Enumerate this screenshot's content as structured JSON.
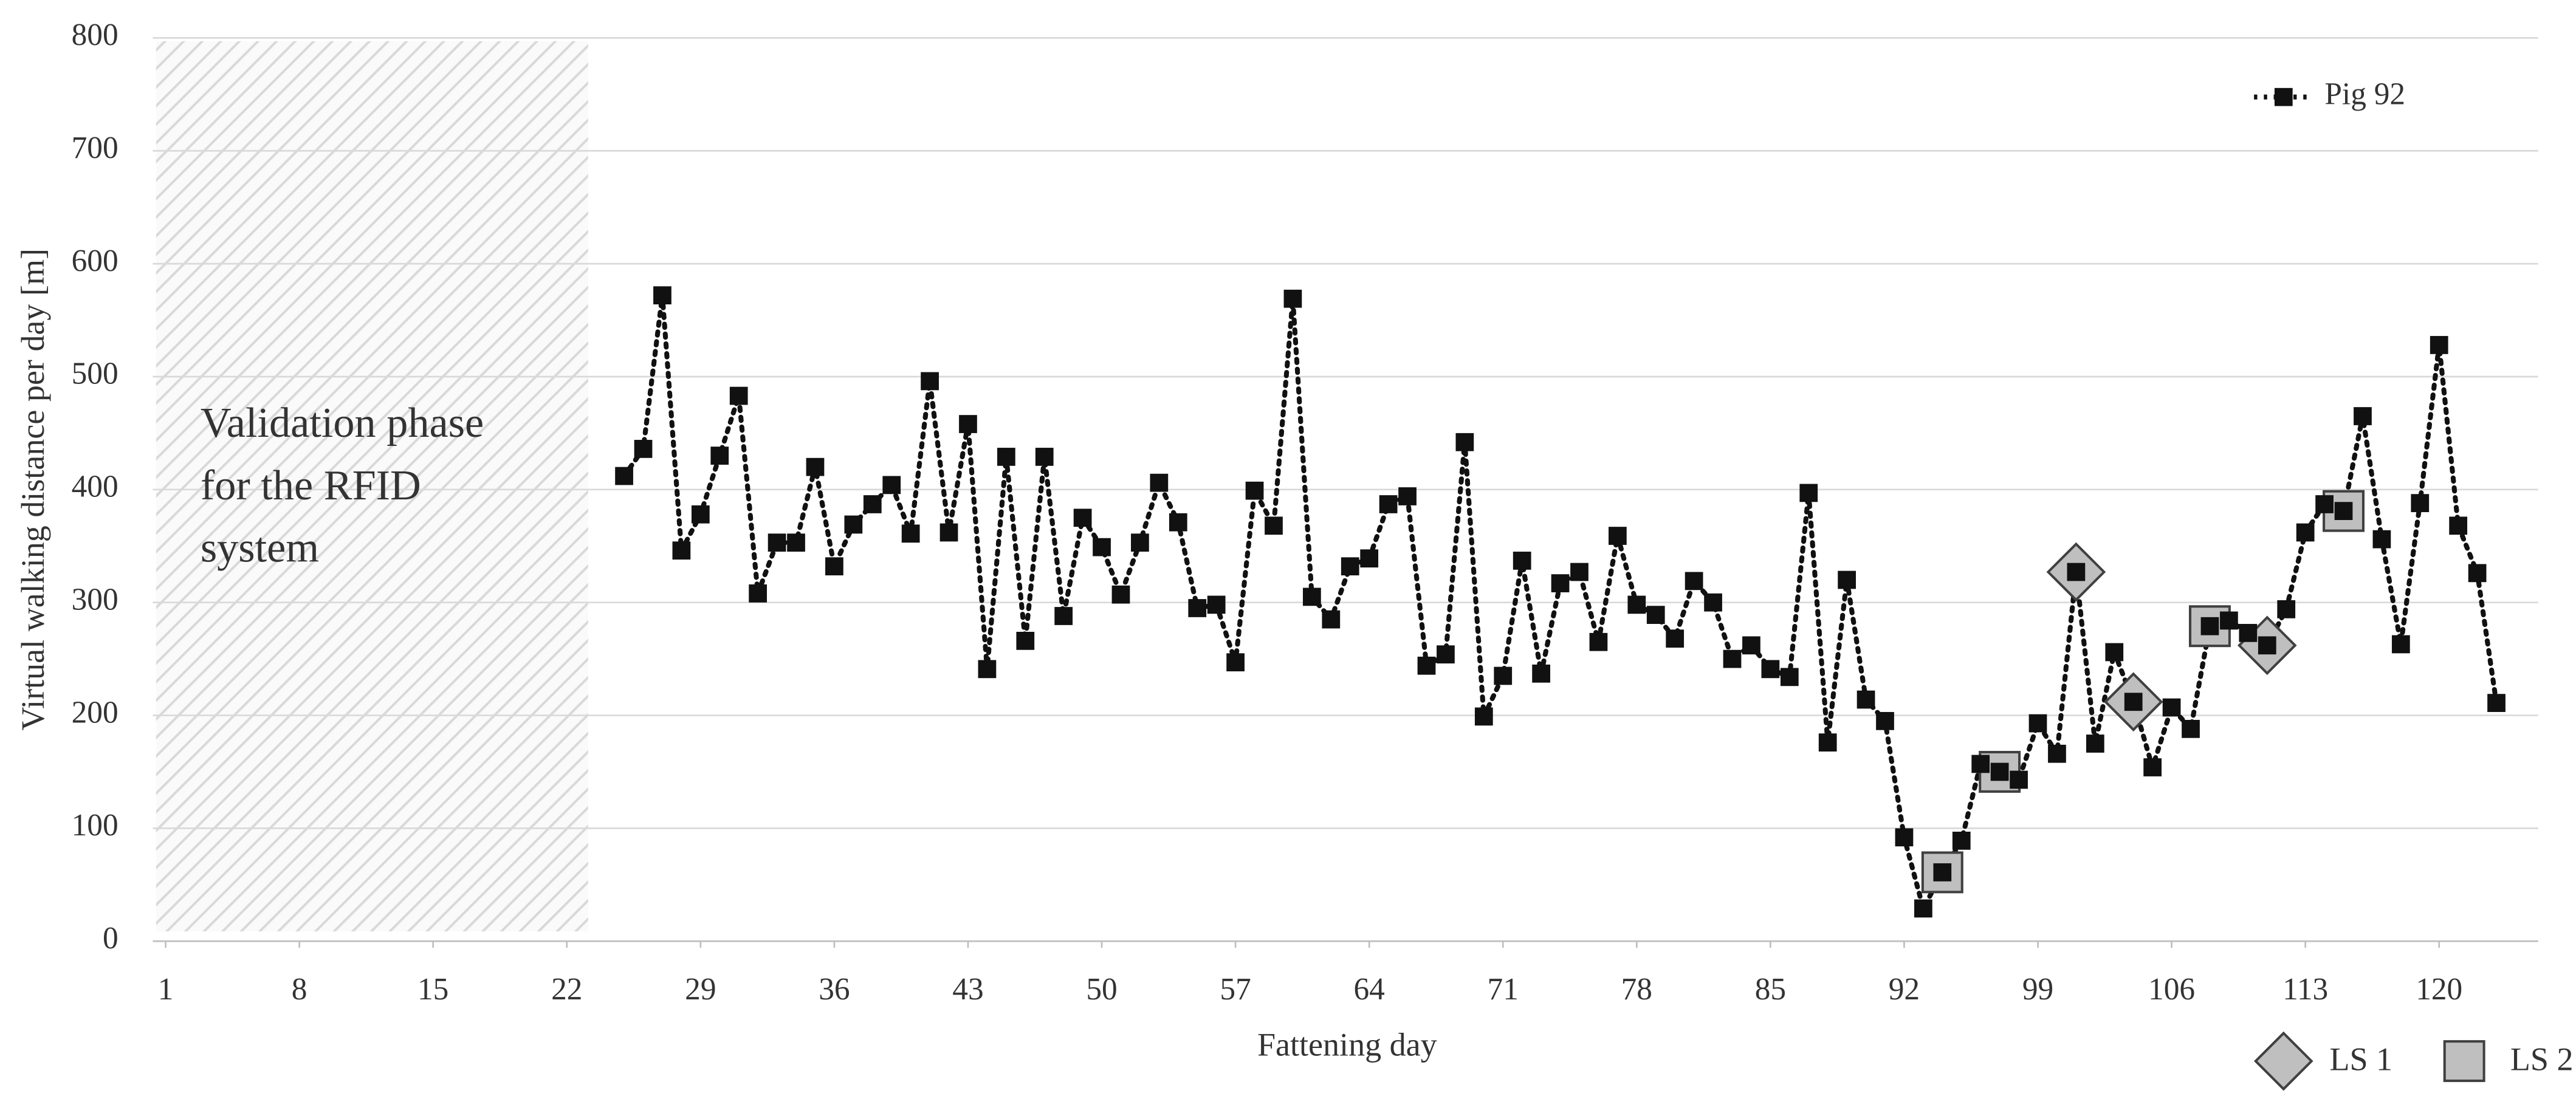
{
  "chart_data": {
    "type": "line",
    "y_label": "Virtual walking distance per day [m]",
    "x_label": "Fattening day",
    "annotation": [
      "Validation phase",
      "for the RFID",
      "system"
    ],
    "xlim": [
      0.5,
      124.5
    ],
    "xticks": [
      1,
      8,
      15,
      22,
      29,
      36,
      43,
      50,
      57,
      64,
      71,
      78,
      85,
      92,
      99,
      106,
      113,
      120
    ],
    "ylim": [
      0,
      800
    ],
    "yticks": [
      0,
      100,
      200,
      300,
      400,
      500,
      600,
      700,
      800
    ],
    "grid": true,
    "legend": "upper right",
    "x": [
      25,
      26,
      27,
      28,
      29,
      30,
      31,
      32,
      33,
      34,
      35,
      36,
      37,
      38,
      39,
      40,
      41,
      42,
      43,
      44,
      45,
      46,
      47,
      48,
      49,
      50,
      51,
      52,
      53,
      54,
      55,
      56,
      57,
      58,
      59,
      60,
      61,
      62,
      63,
      64,
      65,
      66,
      67,
      68,
      69,
      70,
      71,
      72,
      73,
      74,
      75,
      76,
      77,
      78,
      79,
      80,
      81,
      82,
      83,
      84,
      85,
      86,
      87,
      88,
      89,
      90,
      91,
      92,
      93,
      94,
      95,
      96,
      97,
      98,
      99,
      100,
      101,
      102,
      103,
      104,
      105,
      106,
      107,
      108,
      109,
      110,
      111,
      112,
      113,
      114,
      115,
      116,
      117,
      118,
      119,
      120,
      121,
      122,
      123
    ],
    "series": [
      {
        "name": "Pig 92",
        "color": "#111111",
        "marker": "square",
        "values": [
          412,
          436,
          572,
          346,
          378,
          430,
          483,
          308,
          353,
          353,
          420,
          332,
          369,
          387,
          404,
          361,
          496,
          362,
          458,
          241,
          429,
          266,
          429,
          288,
          375,
          349,
          307,
          353,
          406,
          371,
          295,
          298,
          247,
          399,
          368,
          569,
          305,
          285,
          332,
          339,
          387,
          394,
          244,
          254,
          442,
          199,
          235,
          337,
          237,
          317,
          327,
          265,
          359,
          298,
          289,
          268,
          319,
          300,
          250,
          262,
          241,
          234,
          397,
          176,
          320,
          214,
          195,
          92,
          29,
          61,
          89,
          157,
          150,
          143,
          193,
          166,
          327,
          175,
          256,
          212,
          154,
          207,
          188,
          279,
          284,
          273,
          262,
          294,
          362,
          387,
          381,
          465,
          356,
          263,
          388,
          528,
          368,
          326,
          211
        ]
      },
      {
        "name": "LS 1",
        "color": "#bfbfbf",
        "marker": "diamond",
        "x": [
          101,
          104,
          111
        ],
        "values": [
          327,
          212,
          262
        ]
      },
      {
        "name": "LS 2",
        "color": "#bfbfbf",
        "marker": "square",
        "x": [
          94,
          97,
          108,
          115
        ],
        "values": [
          61,
          150,
          279,
          381
        ]
      }
    ]
  }
}
